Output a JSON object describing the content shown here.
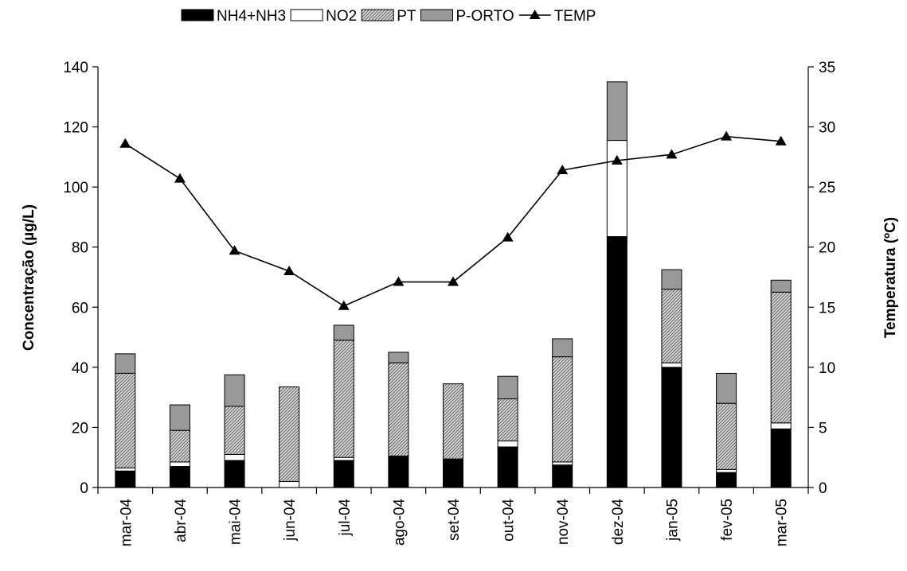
{
  "chart_data": {
    "type": "bar",
    "stacked": true,
    "categories": [
      "mar-04",
      "abr-04",
      "mai-04",
      "jun-04",
      "jul-04",
      "ago-04",
      "set-04",
      "out-04",
      "nov-04",
      "dez-04",
      "jan-05",
      "fev-05",
      "mar-05"
    ],
    "series": [
      {
        "name": "NH4+NH3",
        "color": "#000000",
        "pattern": "solid",
        "values": [
          5.5,
          7,
          9,
          0,
          9,
          10.5,
          9.5,
          13.5,
          7.5,
          83.5,
          40,
          5,
          19.5
        ]
      },
      {
        "name": "NO2",
        "color": "#ffffff",
        "pattern": "solid",
        "values": [
          1,
          1.5,
          2,
          2,
          1,
          0,
          0,
          2,
          1,
          32,
          1.5,
          1,
          2
        ]
      },
      {
        "name": "PT",
        "color": "#cccccc",
        "pattern": "hatched",
        "values": [
          31.5,
          10.5,
          16,
          31.5,
          39,
          31,
          25,
          14,
          35,
          0,
          24.5,
          22,
          43.5
        ]
      },
      {
        "name": "P-ORTO",
        "color": "#999999",
        "pattern": "solid",
        "values": [
          6.5,
          8.5,
          10.5,
          0,
          5,
          3.5,
          0,
          7.5,
          6,
          19.5,
          6.5,
          10,
          4
        ]
      }
    ],
    "line_series": {
      "name": "TEMP",
      "axis": "right",
      "marker": "triangle",
      "values": [
        28.6,
        25.7,
        19.7,
        18.0,
        15.1,
        17.1,
        17.1,
        20.8,
        26.4,
        27.2,
        27.7,
        29.2,
        28.8
      ]
    },
    "ylabel": "Concentração (µg/L)",
    "ylabel_right": "Temperatura (ºC)",
    "ylim": [
      0,
      140
    ],
    "ylim_right": [
      0,
      35
    ],
    "yticks": [
      "0",
      "20",
      "40",
      "60",
      "80",
      "100",
      "120",
      "140"
    ],
    "yticks_right": [
      "0",
      "5",
      "10",
      "15",
      "20",
      "25",
      "30",
      "35"
    ],
    "legend_position": "top-center",
    "grid": false
  }
}
